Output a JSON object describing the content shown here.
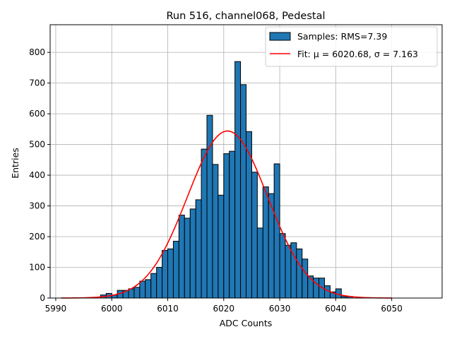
{
  "chart_data": {
    "type": "bar",
    "title": "Run 516, channel068, Pedestal",
    "xlabel": "ADC Counts",
    "ylabel": "Entries",
    "xlim": [
      5989,
      6059
    ],
    "ylim": [
      0,
      890
    ],
    "xticks": [
      5990,
      6000,
      6010,
      6020,
      6030,
      6040,
      6050
    ],
    "yticks": [
      0,
      100,
      200,
      300,
      400,
      500,
      600,
      700,
      800
    ],
    "grid": true,
    "legend_position": "top-right",
    "bin_width": 1,
    "bin_start": 5998,
    "values": [
      10,
      15,
      10,
      25,
      25,
      30,
      35,
      55,
      60,
      80,
      100,
      155,
      160,
      185,
      270,
      260,
      290,
      320,
      485,
      595,
      435,
      335,
      470,
      478,
      770,
      695,
      542,
      410,
      228,
      362,
      340,
      437,
      210,
      172,
      180,
      160,
      127,
      72,
      65,
      65,
      40,
      20,
      30,
      5,
      5
    ],
    "series": [
      {
        "name": "Samples: RMS=7.39",
        "kind": "histogram",
        "color": "#1f77b4",
        "edge": "#000000"
      },
      {
        "name": "Fit: μ = 6020.68, σ = 7.163",
        "kind": "gaussian-fit",
        "color": "#ff0000",
        "mu": 6020.68,
        "sigma": 7.163,
        "amplitude": 544,
        "x_range": [
          5991,
          6050
        ]
      }
    ]
  }
}
